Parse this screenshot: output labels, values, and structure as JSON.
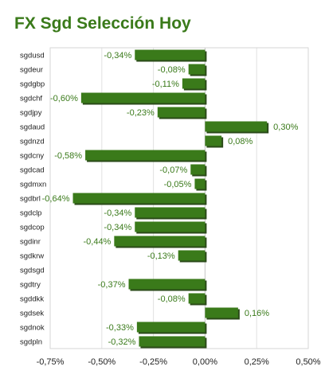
{
  "chart_data": {
    "type": "bar",
    "orientation": "horizontal",
    "title": "FX Sgd Selección Hoy",
    "categories": [
      "sgdusd",
      "sgdeur",
      "sgdgbp",
      "sgdchf",
      "sgdjpy",
      "sgdaud",
      "sgdnzd",
      "sgdcny",
      "sgdcad",
      "sgdmxn",
      "sgdbrl",
      "sgdclp",
      "sgdcop",
      "sgdinr",
      "sgdkrw",
      "sgdsgd",
      "sgdtry",
      "sgddkk",
      "sgdsek",
      "sgdnok",
      "sgdpln"
    ],
    "values": [
      -0.34,
      -0.08,
      -0.11,
      -0.6,
      -0.23,
      0.3,
      0.08,
      -0.58,
      -0.07,
      -0.05,
      -0.64,
      -0.34,
      -0.34,
      -0.44,
      -0.13,
      null,
      -0.37,
      -0.08,
      0.16,
      -0.33,
      -0.32
    ],
    "value_labels": [
      "-0,34%",
      "-0,08%",
      "-0,11%",
      "-0,60%",
      "-0,23%",
      "0,30%",
      "0,08%",
      "-0,58%",
      "-0,07%",
      "-0,05%",
      "-0,64%",
      "-0,34%",
      "-0,34%",
      "-0,44%",
      "-0,13%",
      "",
      "-0,37%",
      "-0,08%",
      "0,16%",
      "-0,33%",
      "-0,32%"
    ],
    "xlim": [
      -0.75,
      0.5
    ],
    "x_ticks": [
      -0.75,
      -0.5,
      -0.25,
      0,
      0.25,
      0.5
    ],
    "x_tick_labels": [
      "-0,75%",
      "-0,50%",
      "-0,25%",
      "0,00%",
      "0,25%",
      "0,50%"
    ],
    "grid": true,
    "bar_color": "#3a7a1a",
    "bar_shadow_color": "#2a4a18",
    "label_color": "#3a7a1a",
    "title_color": "#3a7a1a"
  }
}
